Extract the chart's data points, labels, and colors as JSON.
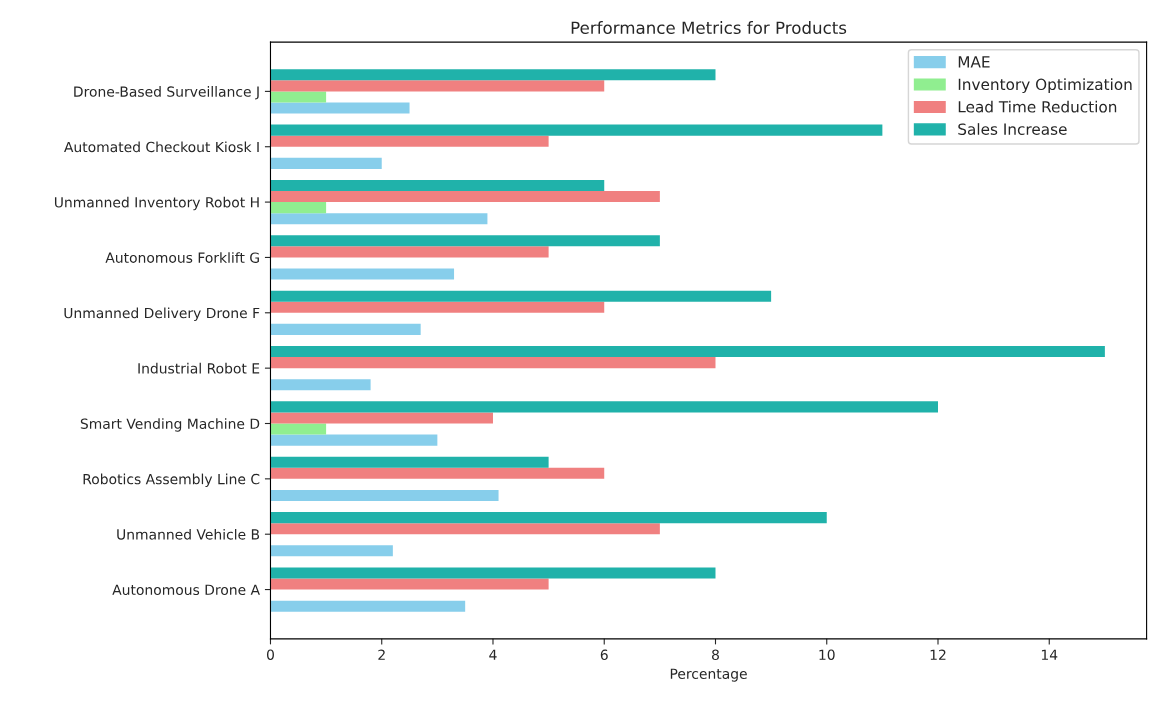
{
  "chart_data": {
    "type": "bar",
    "orientation": "horizontal",
    "title": "Performance Metrics for Products",
    "xlabel": "Percentage",
    "categories": [
      "Drone-Based Surveillance J",
      "Automated Checkout Kiosk I",
      "Unmanned Inventory Robot H",
      "Autonomous Forklift G",
      "Unmanned Delivery Drone F",
      "Industrial Robot E",
      "Smart Vending Machine D",
      "Robotics Assembly Line C",
      "Unmanned Vehicle B",
      "Autonomous Drone A"
    ],
    "series": [
      {
        "name": "MAE",
        "color": "#87ceeb",
        "values": [
          2.5,
          2.0,
          3.9,
          3.3,
          2.7,
          1.8,
          3.0,
          4.1,
          2.2,
          3.5
        ]
      },
      {
        "name": "Inventory Optimization",
        "color": "#90ee90",
        "values": [
          1,
          null,
          1,
          null,
          null,
          null,
          1,
          null,
          null,
          null
        ]
      },
      {
        "name": "Lead Time Reduction",
        "color": "#f08080",
        "values": [
          6,
          5,
          7,
          5,
          6,
          8,
          4,
          6,
          7,
          5
        ]
      },
      {
        "name": "Sales Increase",
        "color": "#20b2aa",
        "values": [
          8,
          11,
          6,
          7,
          9,
          15,
          12,
          5,
          10,
          8
        ]
      }
    ],
    "xlim": [
      0,
      15.75
    ],
    "xticks": [
      0,
      2,
      4,
      6,
      8,
      10,
      12,
      14
    ],
    "legend": "top right",
    "grid": false
  }
}
